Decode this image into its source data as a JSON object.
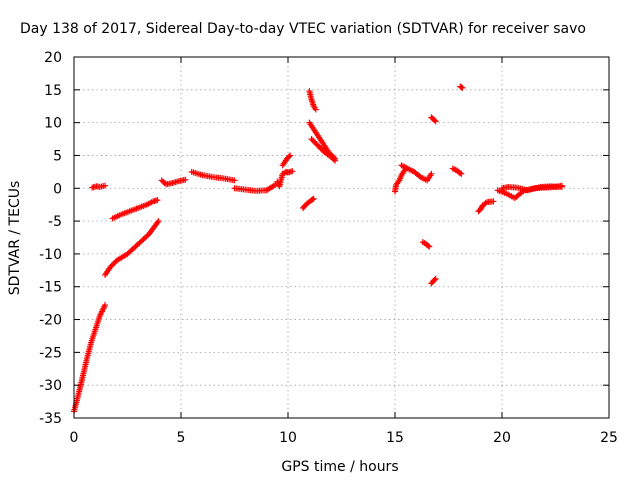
{
  "chart_data": {
    "type": "scatter",
    "title": "Day 138 of 2017, Sidereal Day-to-day VTEC variation (SDTVAR) for receiver savo",
    "xlabel": "GPS time / hours",
    "ylabel": "SDTVAR / TECUs",
    "xlim": [
      0,
      25
    ],
    "ylim": [
      -35,
      20
    ],
    "xticks": [
      0,
      5,
      10,
      15,
      20,
      25
    ],
    "yticks": [
      -35,
      -30,
      -25,
      -20,
      -15,
      -10,
      -5,
      0,
      5,
      10,
      15,
      20
    ],
    "grid": true,
    "marker": "+",
    "color": "#ff0000",
    "segments": [
      {
        "x": [
          0.0,
          0.2,
          0.4,
          0.6,
          0.8,
          1.0,
          1.2,
          1.45
        ],
        "y": [
          -34.0,
          -31.5,
          -28.8,
          -26.0,
          -23.5,
          -21.5,
          -19.5,
          -17.8
        ]
      },
      {
        "x": [
          0.85,
          1.05,
          1.2,
          1.45
        ],
        "y": [
          0.1,
          0.3,
          0.2,
          0.4
        ]
      },
      {
        "x": [
          1.45,
          1.7,
          2.0,
          2.5,
          3.0,
          3.5,
          3.95
        ],
        "y": [
          -13.2,
          -12.0,
          -11.0,
          -10.0,
          -8.5,
          -7.0,
          -5.0
        ]
      },
      {
        "x": [
          1.8,
          2.2,
          2.6,
          3.0,
          3.4,
          3.7,
          3.9
        ],
        "y": [
          -4.6,
          -4.0,
          -3.5,
          -3.0,
          -2.5,
          -2.0,
          -1.8
        ]
      },
      {
        "x": [
          4.1,
          4.3,
          4.6,
          4.9,
          5.2
        ],
        "y": [
          1.2,
          0.6,
          0.8,
          1.1,
          1.3
        ]
      },
      {
        "x": [
          5.5,
          6.0,
          6.5,
          7.0,
          7.5
        ],
        "y": [
          2.5,
          2.0,
          1.7,
          1.5,
          1.2
        ]
      },
      {
        "x": [
          7.5,
          8.0,
          8.5,
          9.0,
          9.4
        ],
        "y": [
          0.0,
          -0.2,
          -0.4,
          -0.3,
          0.5
        ]
      },
      {
        "x": [
          9.5,
          9.6,
          9.75,
          9.9,
          10.0,
          10.2
        ],
        "y": [
          1.0,
          0.3,
          2.2,
          2.5,
          2.4,
          2.6
        ]
      },
      {
        "x": [
          9.75,
          9.85,
          9.95,
          10.1
        ],
        "y": [
          3.5,
          4.0,
          4.5,
          5.0
        ]
      },
      {
        "x": [
          10.7,
          10.9,
          11.1,
          11.2
        ],
        "y": [
          -3.0,
          -2.3,
          -1.8,
          -1.6
        ]
      },
      {
        "x": [
          11.0,
          11.1,
          11.2,
          11.3
        ],
        "y": [
          14.8,
          13.5,
          12.5,
          12.0
        ]
      },
      {
        "x": [
          11.0,
          11.3,
          11.6,
          11.9,
          12.2
        ],
        "y": [
          10.0,
          8.5,
          7.0,
          5.5,
          4.5
        ]
      },
      {
        "x": [
          11.1,
          11.4,
          11.7,
          12.0,
          12.2
        ],
        "y": [
          7.5,
          6.5,
          5.5,
          4.8,
          4.2
        ]
      },
      {
        "x": [
          15.0,
          15.05,
          15.2,
          15.3,
          15.5
        ],
        "y": [
          -0.5,
          0.5,
          1.2,
          2.0,
          3.0
        ]
      },
      {
        "x": [
          15.3,
          15.6,
          15.9,
          16.2,
          16.5,
          16.7
        ],
        "y": [
          3.5,
          3.0,
          2.5,
          1.7,
          1.2,
          2.2
        ]
      },
      {
        "x": [
          16.3,
          16.45,
          16.6
        ],
        "y": [
          -8.2,
          -8.5,
          -8.9
        ]
      },
      {
        "x": [
          16.7,
          16.8,
          16.9
        ],
        "y": [
          10.8,
          10.5,
          10.2
        ]
      },
      {
        "x": [
          16.7,
          16.8,
          16.9
        ],
        "y": [
          -14.5,
          -14.1,
          -13.8
        ]
      },
      {
        "x": [
          17.7,
          17.9,
          18.0,
          18.1
        ],
        "y": [
          3.0,
          2.7,
          2.4,
          2.2
        ]
      },
      {
        "x": [
          18.05,
          18.15
        ],
        "y": [
          15.5,
          15.3
        ]
      },
      {
        "x": [
          18.9,
          19.0,
          19.1,
          19.3,
          19.6
        ],
        "y": [
          -3.5,
          -3.2,
          -2.6,
          -2.1,
          -2.0
        ]
      },
      {
        "x": [
          19.8,
          20.2,
          20.6,
          21.0,
          21.5,
          22.0,
          22.5,
          22.8
        ],
        "y": [
          -0.3,
          -0.8,
          -1.5,
          -0.4,
          0.0,
          0.1,
          0.2,
          0.4
        ]
      },
      {
        "x": [
          20.0,
          20.3,
          20.7,
          21.2,
          21.8,
          22.3,
          22.8
        ],
        "y": [
          0.0,
          0.2,
          0.1,
          -0.3,
          0.2,
          0.3,
          0.2
        ]
      }
    ]
  }
}
